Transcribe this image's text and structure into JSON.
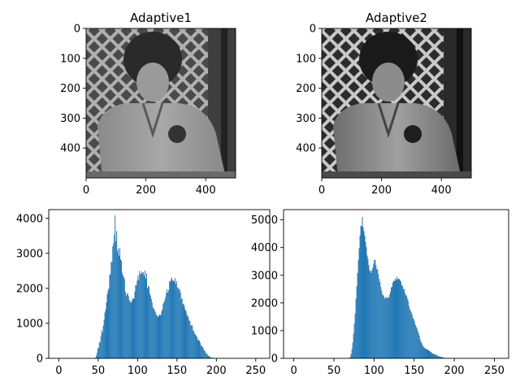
{
  "chart_data": [
    {
      "type": "image",
      "title": "Adaptive1",
      "image_description": "grayscale photograph of a child in a jacket (adaptive histogram equalization, lower contrast)",
      "image_size": [
        500,
        500
      ],
      "xticks": [
        0,
        200,
        400
      ],
      "yticks": [
        0,
        100,
        200,
        300,
        400
      ],
      "xlim": [
        0,
        500
      ],
      "ylim": [
        500,
        0
      ]
    },
    {
      "type": "image",
      "title": "Adaptive2",
      "image_description": "grayscale photograph of a child in a jacket (adaptive histogram equalization, higher contrast)",
      "image_size": [
        500,
        500
      ],
      "xticks": [
        0,
        200,
        400
      ],
      "yticks": [
        0,
        100,
        200,
        300,
        400
      ],
      "xlim": [
        0,
        500
      ],
      "ylim": [
        500,
        0
      ]
    },
    {
      "type": "bar",
      "title": "",
      "xlabel": "",
      "ylabel": "",
      "color": "#1f77b4",
      "xlim": [
        -12.75,
        267.75
      ],
      "ylim": [
        0,
        4250
      ],
      "xticks": [
        0,
        50,
        100,
        150,
        200,
        250
      ],
      "yticks": [
        0,
        1000,
        2000,
        3000,
        4000
      ],
      "x_start": 0,
      "values": [
        0,
        0,
        0,
        0,
        0,
        0,
        0,
        0,
        0,
        0,
        0,
        0,
        0,
        0,
        0,
        0,
        0,
        0,
        0,
        0,
        0,
        0,
        0,
        0,
        0,
        0,
        0,
        0,
        0,
        0,
        0,
        0,
        0,
        0,
        0,
        0,
        0,
        0,
        0,
        0,
        0,
        0,
        0,
        0,
        0,
        2,
        20,
        63,
        154,
        289,
        301,
        472,
        453,
        647,
        806,
        741,
        932,
        1102,
        1307,
        1391,
        1593,
        1834,
        1932,
        1997,
        2378,
        2409,
        2759,
        2751,
        3202,
        3288,
        3540,
        4087,
        3349,
        3636,
        3060,
        3142,
        2935,
        3145,
        2830,
        2788,
        2447,
        2370,
        2326,
        2267,
        1907,
        1789,
        1845,
        1859,
        1782,
        1671,
        1626,
        1580,
        1626,
        1692,
        1711,
        1707,
        1901,
        2093,
        2081,
        2218,
        2365,
        2247,
        2501,
        2402,
        2428,
        2481,
        2427,
        2467,
        2356,
        2511,
        2280,
        2424,
        1999,
        2070,
        2045,
        1848,
        1794,
        1698,
        1593,
        1451,
        1425,
        1383,
        1333,
        1264,
        1227,
        1191,
        1198,
        1260,
        1229,
        1239,
        1345,
        1403,
        1562,
        1600,
        1657,
        1749,
        1872,
        1975,
        1873,
        1954,
        2205,
        2189,
        2253,
        2308,
        2210,
        2230,
        2196,
        2293,
        2128,
        2211,
        2014,
        2022,
        1958,
        1976,
        1885,
        1687,
        1720,
        1544,
        1565,
        1492,
        1395,
        1351,
        1256,
        1195,
        1196,
        1073,
        1075,
        941,
        944,
        946,
        803,
        769,
        706,
        679,
        646,
        611,
        511,
        544,
        497,
        447,
        358,
        361,
        322,
        291,
        229,
        208,
        164,
        128,
        116,
        80,
        66,
        50,
        28,
        24,
        14,
        8,
        3,
        0,
        0,
        0,
        0,
        0,
        0,
        0,
        0,
        0,
        0,
        0,
        0,
        0,
        0,
        0,
        0,
        0,
        0,
        0,
        0,
        0,
        0,
        0,
        0,
        0,
        0,
        0,
        0,
        0,
        0,
        0,
        0,
        0,
        0,
        0,
        0,
        0,
        0,
        0,
        0,
        0,
        0,
        0,
        0,
        0,
        0,
        0,
        0,
        0,
        0,
        0,
        0,
        0,
        0,
        0,
        0,
        0,
        0,
        0,
        0,
        0,
        0,
        0,
        0,
        0,
        0,
        0,
        0,
        0,
        0,
        0,
        0,
        0,
        0,
        0,
        0,
        0,
        0,
        0,
        0
      ]
    },
    {
      "type": "bar",
      "title": "",
      "xlabel": "",
      "ylabel": "",
      "color": "#1f77b4",
      "xlim": [
        -12.75,
        267.75
      ],
      "ylim": [
        0,
        5370
      ],
      "xticks": [
        0,
        50,
        100,
        150,
        200,
        250
      ],
      "yticks": [
        0,
        1000,
        2000,
        3000,
        4000,
        5000
      ],
      "x_start": 0,
      "values": [
        0,
        0,
        0,
        0,
        0,
        0,
        0,
        0,
        0,
        0,
        0,
        0,
        0,
        0,
        0,
        0,
        0,
        0,
        0,
        0,
        0,
        0,
        0,
        0,
        0,
        0,
        0,
        0,
        0,
        0,
        0,
        0,
        0,
        0,
        0,
        0,
        0,
        0,
        0,
        0,
        0,
        0,
        0,
        0,
        0,
        0,
        0,
        0,
        0,
        0,
        0,
        0,
        0,
        0,
        0,
        0,
        0,
        0,
        0,
        0,
        0,
        0,
        0,
        0,
        0,
        0,
        0,
        0,
        0,
        10,
        63,
        164,
        342,
        568,
        891,
        1258,
        1614,
        2154,
        2599,
        3082,
        3553,
        3976,
        4434,
        4780,
        4778,
        5103,
        4733,
        4590,
        4428,
        4207,
        4012,
        3713,
        3585,
        3371,
        3171,
        3154,
        3082,
        3195,
        3278,
        3420,
        3558,
        3556,
        3363,
        3218,
        3213,
        3034,
        2866,
        2749,
        2583,
        2454,
        2307,
        2282,
        2227,
        2154,
        2201,
        2186,
        2214,
        2171,
        2201,
        2304,
        2408,
        2562,
        2587,
        2737,
        2806,
        2786,
        2882,
        2815,
        2944,
        2850,
        2880,
        2863,
        2812,
        2780,
        2644,
        2604,
        2495,
        2513,
        2364,
        2286,
        2264,
        2166,
        2078,
        1899,
        1776,
        1723,
        1660,
        1577,
        1456,
        1418,
        1338,
        1217,
        1147,
        1083,
        996,
        903,
        816,
        682,
        597,
        546,
        479,
        422,
        391,
        369,
        348,
        323,
        319,
        304,
        276,
        257,
        237,
        215,
        184,
        174,
        153,
        149,
        135,
        122,
        110,
        89,
        81,
        71,
        61,
        58,
        51,
        37,
        29,
        21,
        13,
        8,
        3,
        2,
        0,
        0,
        0,
        0,
        0,
        0,
        0,
        0,
        0,
        0,
        0,
        0,
        0,
        0,
        0,
        0,
        0,
        0,
        0,
        0,
        0,
        0,
        0,
        0,
        0,
        0,
        0,
        0,
        0,
        0,
        0,
        0,
        0,
        0,
        0,
        0,
        0,
        0,
        0,
        0,
        0,
        0,
        0,
        0,
        0,
        0,
        0,
        0,
        0,
        0,
        0,
        0,
        0,
        0,
        0,
        0,
        0,
        0,
        0,
        0,
        0,
        0,
        0,
        0,
        0,
        0,
        0,
        0,
        0,
        0,
        0,
        0,
        0,
        0,
        0,
        0
      ]
    }
  ]
}
